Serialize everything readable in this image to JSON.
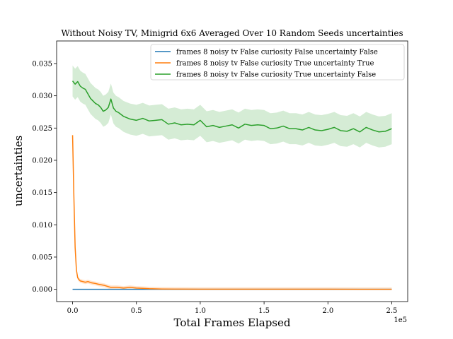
{
  "chart_data": {
    "type": "line",
    "title": "Without Noisy TV, Minigrid 6x6 Averaged Over 10 Random Seeds uncertainties",
    "xlabel": "Total Frames Elapsed",
    "ylabel": "uncertainties",
    "x_scale_note": "1e5",
    "xlim": [
      -12500,
      262500
    ],
    "ylim": [
      -0.0019,
      0.0385
    ],
    "xticks": [
      0,
      50000,
      100000,
      150000,
      200000,
      250000
    ],
    "xtick_labels": [
      "0.0",
      "0.5",
      "1.0",
      "1.5",
      "2.0",
      "2.5"
    ],
    "yticks": [
      0.0,
      0.005,
      0.01,
      0.015,
      0.02,
      0.025,
      0.03,
      0.035
    ],
    "ytick_labels": [
      "0.000",
      "0.005",
      "0.010",
      "0.015",
      "0.020",
      "0.025",
      "0.030",
      "0.035"
    ],
    "legend_position": "top-right",
    "grid": false,
    "series": [
      {
        "name": "frames 8 noisy tv False curiosity False uncertainty False",
        "color": "#1f77b4",
        "x": [
          0,
          250000
        ],
        "y": [
          0.0,
          0.0
        ],
        "band": 0.0
      },
      {
        "name": "frames 8 noisy tv False curiosity True uncertainty True",
        "color": "#ff7f0e",
        "x": [
          0,
          1000,
          2000,
          3000,
          4000,
          5000,
          6000,
          8000,
          10000,
          12000,
          15000,
          18000,
          20000,
          25000,
          30000,
          35000,
          40000,
          45000,
          50000,
          55000,
          60000,
          70000,
          80000,
          100000,
          150000,
          200000,
          250000
        ],
        "y": [
          0.0239,
          0.0145,
          0.0065,
          0.003,
          0.0018,
          0.0015,
          0.0013,
          0.0012,
          0.0011,
          0.0012,
          0.001,
          0.0009,
          0.0008,
          0.0006,
          0.0003,
          0.0003,
          0.0002,
          0.0003,
          0.0002,
          0.00015,
          0.0001,
          5e-05,
          3e-05,
          2e-05,
          1e-05,
          1e-05,
          0.0
        ],
        "band": 0.0003
      },
      {
        "name": "frames 8 noisy tv False curiosity True uncertainty False",
        "color": "#2ca02c",
        "x": [
          0,
          2000,
          4000,
          6000,
          8000,
          10000,
          12000,
          14000,
          16000,
          18000,
          20000,
          22000,
          24000,
          26000,
          28000,
          30000,
          32000,
          34000,
          36000,
          38000,
          40000,
          45000,
          50000,
          55000,
          60000,
          65000,
          70000,
          75000,
          80000,
          85000,
          90000,
          95000,
          100000,
          105000,
          110000,
          115000,
          120000,
          125000,
          130000,
          135000,
          140000,
          145000,
          150000,
          155000,
          160000,
          165000,
          170000,
          175000,
          180000,
          185000,
          190000,
          195000,
          200000,
          205000,
          210000,
          215000,
          220000,
          225000,
          230000,
          235000,
          240000,
          245000,
          250000
        ],
        "y": [
          0.0323,
          0.0318,
          0.0322,
          0.0315,
          0.0312,
          0.031,
          0.0303,
          0.0296,
          0.0292,
          0.0288,
          0.0286,
          0.0282,
          0.0276,
          0.0278,
          0.0282,
          0.0295,
          0.0281,
          0.0276,
          0.0274,
          0.0271,
          0.0268,
          0.0264,
          0.0262,
          0.0265,
          0.0261,
          0.0262,
          0.0263,
          0.0256,
          0.0258,
          0.0255,
          0.0256,
          0.0255,
          0.0262,
          0.0252,
          0.0254,
          0.0251,
          0.0253,
          0.0255,
          0.025,
          0.0256,
          0.0254,
          0.0255,
          0.0254,
          0.0249,
          0.025,
          0.0253,
          0.0249,
          0.0249,
          0.0247,
          0.0251,
          0.0247,
          0.0246,
          0.0248,
          0.0251,
          0.0246,
          0.0245,
          0.0249,
          0.0244,
          0.0251,
          0.0247,
          0.0244,
          0.0245,
          0.0249
        ],
        "band": 0.0024
      }
    ]
  }
}
